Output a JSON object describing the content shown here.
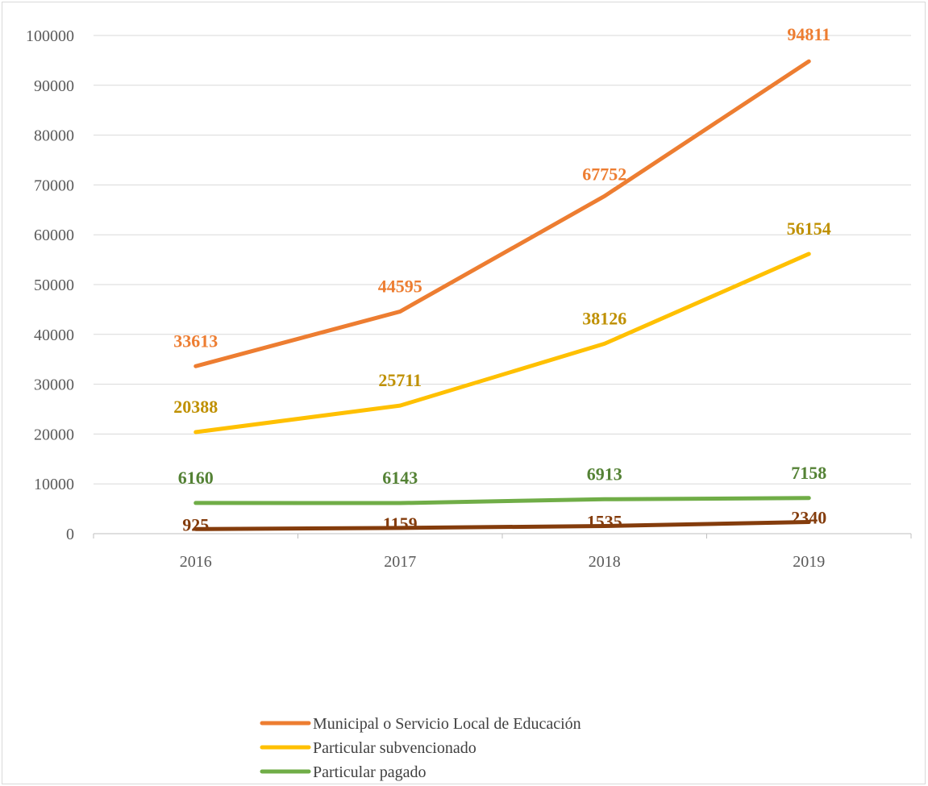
{
  "chart_data": {
    "type": "line",
    "categories": [
      "2016",
      "2017",
      "2018",
      "2019"
    ],
    "ylim": [
      0,
      100000
    ],
    "yticks": [
      0,
      10000,
      20000,
      30000,
      40000,
      50000,
      60000,
      70000,
      80000,
      90000,
      100000
    ],
    "grid": true,
    "legend_position": "bottom",
    "series": [
      {
        "name": "Municipal o Servicio Local de Educación",
        "values": [
          33613,
          44595,
          67752,
          94811
        ],
        "color": "#ED7D31",
        "label_color": "#ED7D31"
      },
      {
        "name": "Particular subvencionado",
        "values": [
          20388,
          25711,
          38126,
          56154
        ],
        "color": "#FFC000",
        "label_color": "#BF9000"
      },
      {
        "name": "Particular pagado",
        "values": [
          6160,
          6143,
          6913,
          7158
        ],
        "color": "#70AD47",
        "label_color": "#548235"
      },
      {
        "name": "",
        "values": [
          925,
          1159,
          1535,
          2340
        ],
        "color": "#843C0C",
        "label_color": "#843C0C"
      }
    ]
  }
}
